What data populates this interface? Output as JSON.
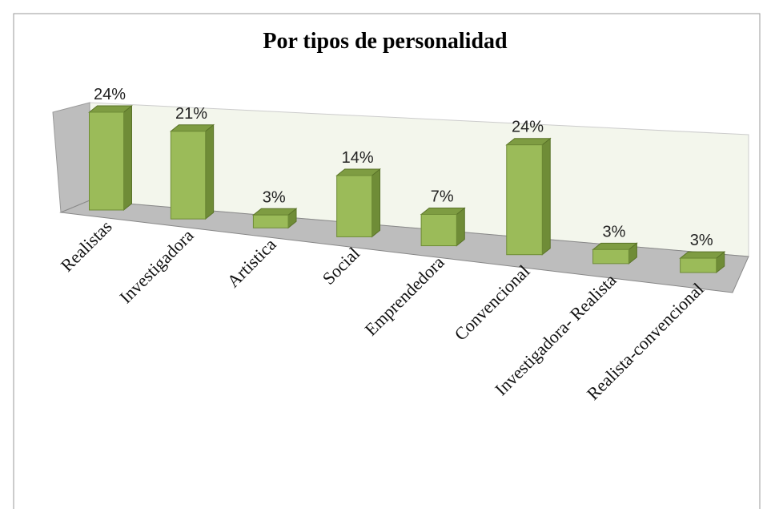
{
  "chart_data": {
    "type": "bar3d",
    "title": "Por tipos de personalidad",
    "categories": [
      "Realistas",
      "Investigadora",
      "Artistica",
      "Social",
      "Emprendedora",
      "Convencional",
      "Investigadora- Realista",
      "Realista-convencional"
    ],
    "values": [
      24,
      21,
      3,
      14,
      7,
      24,
      3,
      3
    ],
    "value_labels": [
      "24%",
      "21%",
      "3%",
      "14%",
      "7%",
      "24%",
      "3%",
      "3%"
    ],
    "color": "#9bbb59"
  }
}
